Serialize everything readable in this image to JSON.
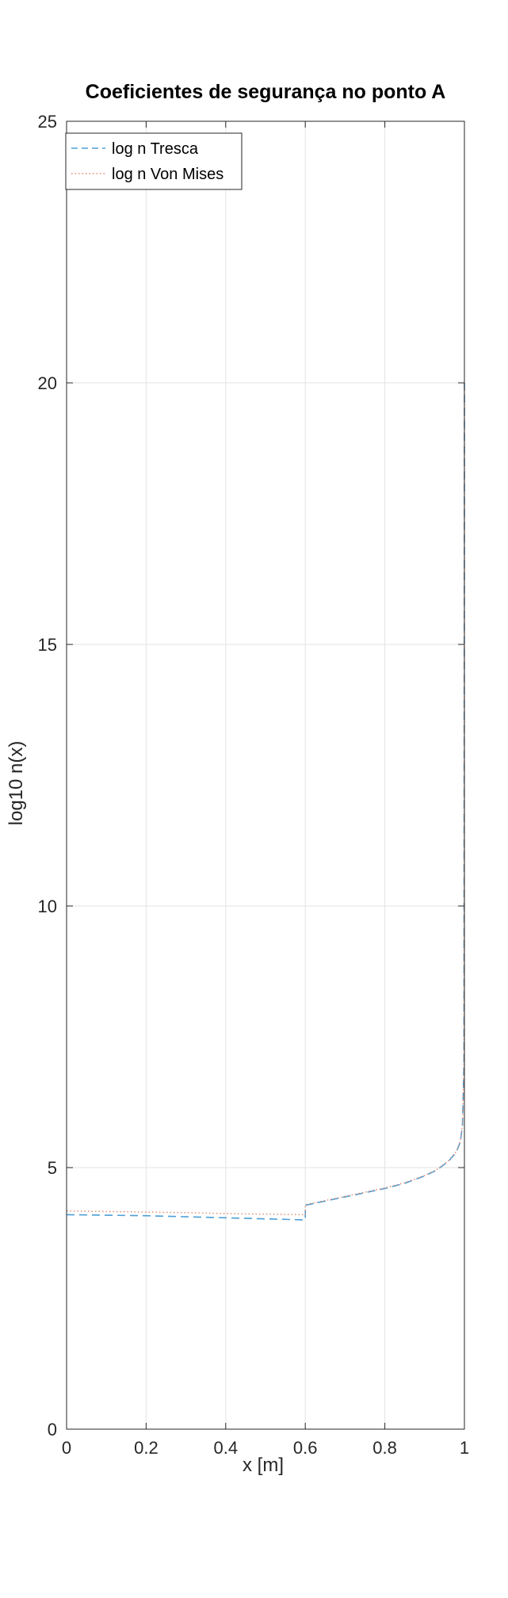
{
  "chart_data": {
    "type": "line",
    "title": "Coeficientes de segurança no ponto A",
    "xlabel": "x [m]",
    "ylabel": "log10 n(x)",
    "xlim": [
      0,
      1
    ],
    "ylim": [
      0,
      25
    ],
    "xticks": [
      0,
      0.2,
      0.4,
      0.6,
      0.8,
      1
    ],
    "xtick_labels": [
      "0",
      "0.2",
      "0.4",
      "0.6",
      "0.8",
      "1"
    ],
    "yticks": [
      0,
      5,
      10,
      15,
      20,
      25
    ],
    "ytick_labels": [
      "0",
      "5",
      "10",
      "15",
      "20",
      "25"
    ],
    "grid": true,
    "legend_position": "top-left",
    "series": [
      {
        "name": "log n Tresca",
        "color": "#0072bd",
        "style": "dashed",
        "x": [
          0,
          0.1,
          0.2,
          0.3,
          0.4,
          0.5,
          0.6,
          0.6001,
          0.65,
          0.7,
          0.75,
          0.8,
          0.85,
          0.9,
          0.93,
          0.96,
          0.98,
          0.99,
          0.995,
          0.999,
          1.0
        ],
        "y": [
          4.1,
          4.09,
          4.08,
          4.06,
          4.04,
          4.02,
          4.0,
          4.28,
          4.36,
          4.44,
          4.52,
          4.6,
          4.7,
          4.84,
          4.95,
          5.12,
          5.3,
          5.5,
          5.8,
          7.0,
          20.0
        ]
      },
      {
        "name": "log n Von Mises",
        "color": "#d95319",
        "style": "dotted",
        "x": [
          0,
          0.1,
          0.2,
          0.3,
          0.4,
          0.5,
          0.6,
          0.6001,
          0.65,
          0.7,
          0.75,
          0.8,
          0.85,
          0.9,
          0.93,
          0.96,
          0.98,
          0.99,
          0.995,
          0.999,
          1.0
        ],
        "y": [
          4.17,
          4.16,
          4.15,
          4.14,
          4.12,
          4.11,
          4.1,
          4.29,
          4.37,
          4.45,
          4.53,
          4.61,
          4.71,
          4.85,
          4.96,
          5.13,
          5.31,
          5.51,
          5.81,
          7.0,
          20.0
        ]
      }
    ]
  }
}
